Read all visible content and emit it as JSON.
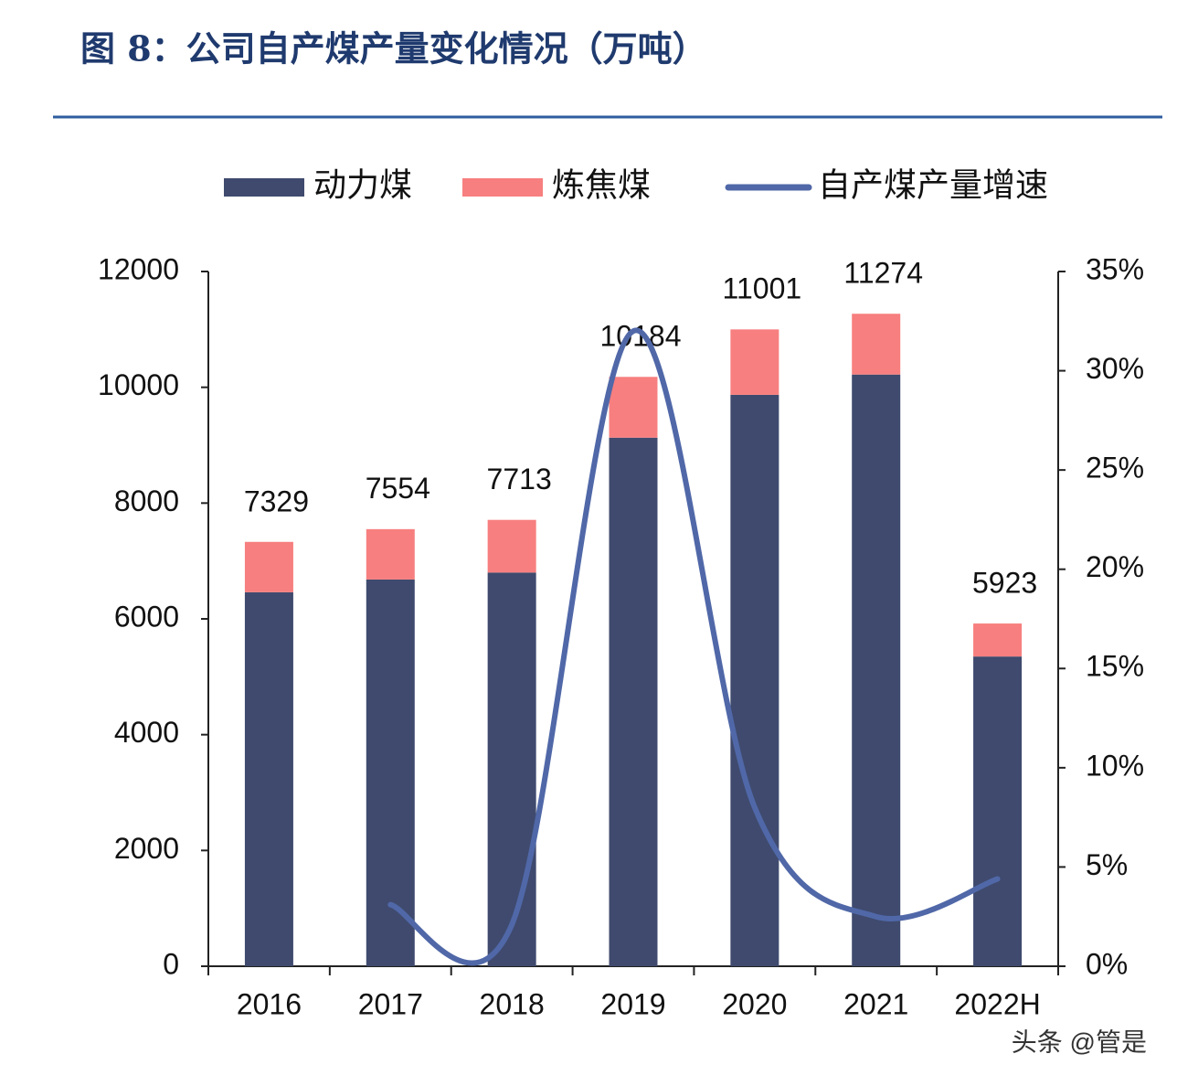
{
  "chart_data": {
    "type": "bar",
    "stacked": true,
    "title": "图 8：公司自产煤产量变化情况（万吨）",
    "watermark": "头条 @管是",
    "categories": [
      "2016",
      "2017",
      "2018",
      "2019",
      "2020",
      "2021",
      "2022H"
    ],
    "series": [
      {
        "name": "动力煤",
        "color": "#3f4a6e",
        "values": [
          6460,
          6680,
          6800,
          9130,
          9870,
          10220,
          5350
        ]
      },
      {
        "name": "炼焦煤",
        "color": "#f77f7f",
        "values": [
          870,
          870,
          910,
          1050,
          1130,
          1050,
          570
        ]
      },
      {
        "name": "自产煤产量增速",
        "color": "#5068a8",
        "type": "line",
        "axis": "y2",
        "values": [
          null,
          3.1,
          2.1,
          32.0,
          8.0,
          2.5,
          4.4
        ]
      }
    ],
    "totals": [
      7329,
      7554,
      7713,
      10184,
      11001,
      11274,
      5923
    ],
    "ylim": [
      0,
      12000
    ],
    "yticks": [
      0,
      2000,
      4000,
      6000,
      8000,
      10000,
      12000
    ],
    "y2lim": [
      0,
      35
    ],
    "y2ticks": [
      {
        "value": 0,
        "label": "0%"
      },
      {
        "value": 5,
        "label": "5%"
      },
      {
        "value": 10,
        "label": "10%"
      },
      {
        "value": 15,
        "label": "15%"
      },
      {
        "value": 20,
        "label": "20%"
      },
      {
        "value": 25,
        "label": "25%"
      },
      {
        "value": 30,
        "label": "30%"
      },
      {
        "value": 35,
        "label": "35%"
      }
    ],
    "legend": "top",
    "grid": false
  }
}
